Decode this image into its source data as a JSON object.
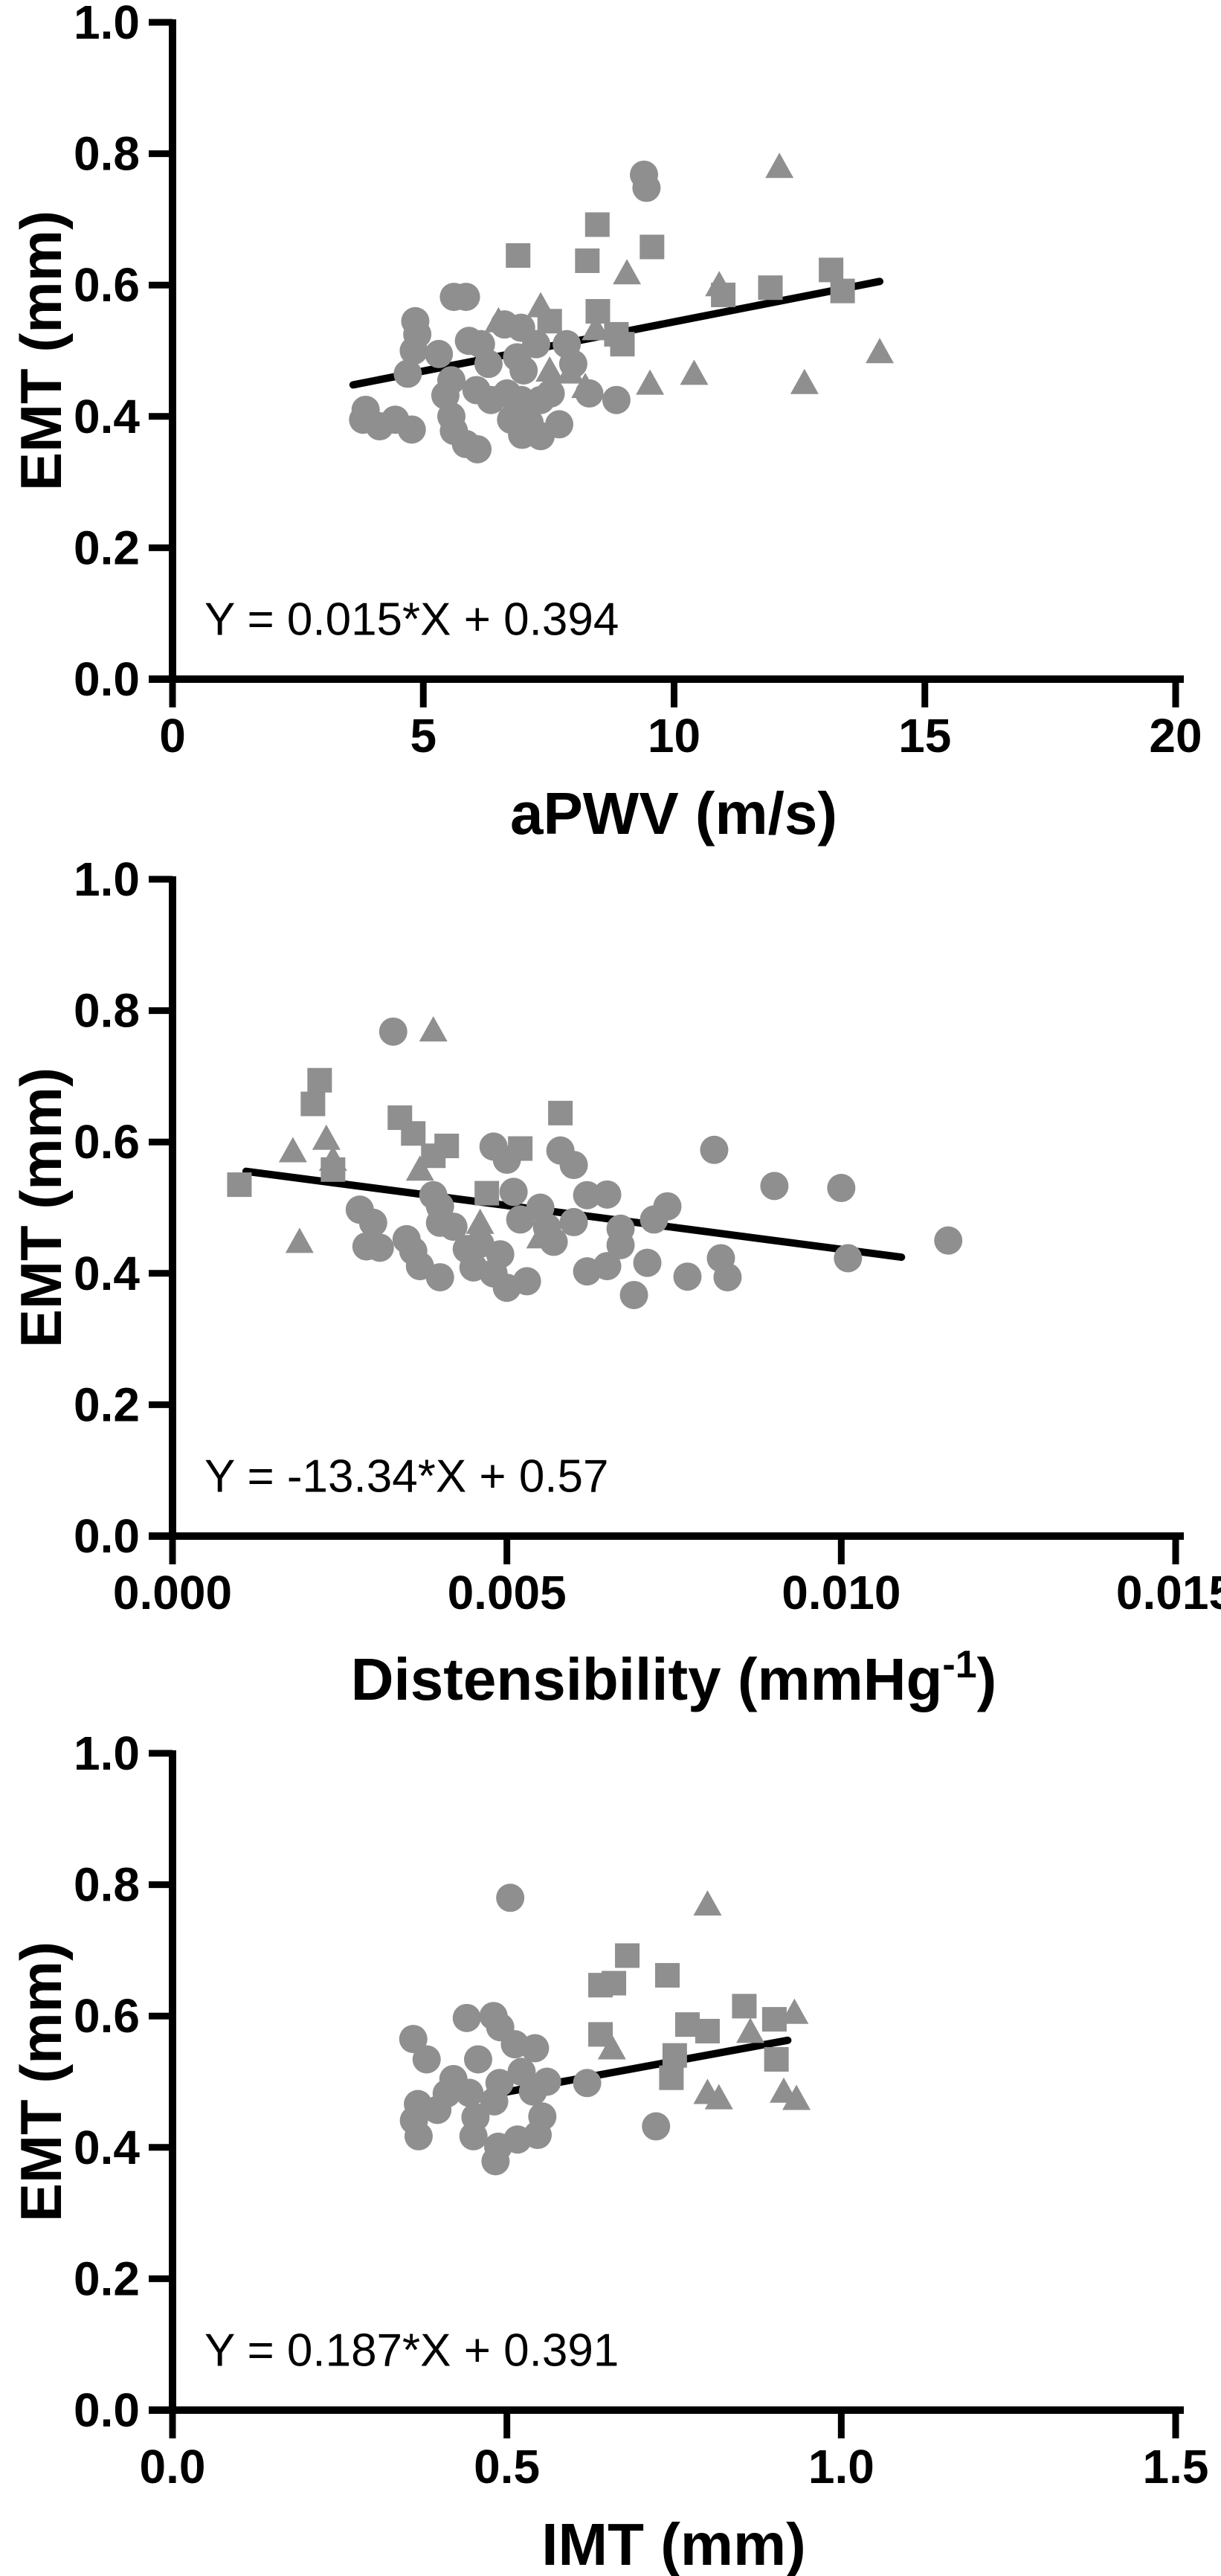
{
  "figure": {
    "background": "#ffffff",
    "marker_color": "#8f8f8f",
    "axis_color": "#000000",
    "regression_color": "#000000",
    "y_axis_label": "EMT (mm)"
  },
  "chart_data": [
    {
      "id": "apwv",
      "type": "scatter",
      "xlabel": "aPWV (m/s)",
      "ylabel": "EMT (mm)",
      "equation": "Y = 0.015*X + 0.394",
      "xlim": [
        0,
        20
      ],
      "ylim": [
        0.0,
        1.0
      ],
      "grid": false,
      "legend": "none",
      "xticks": [
        0,
        5,
        10,
        15,
        20
      ],
      "xtick_labels": [
        "0",
        "5",
        "10",
        "15",
        "20"
      ],
      "yticks": [
        0.0,
        0.2,
        0.4,
        0.6,
        0.8,
        1.0
      ],
      "ytick_labels": [
        "0.0",
        "0.2",
        "0.4",
        "0.6",
        "0.8",
        "1.0"
      ],
      "regression": {
        "slope": 0.015,
        "intercept": 0.394,
        "x_start": 3.6,
        "x_end": 14.1
      },
      "series": [
        {
          "name": "circles",
          "marker": "circle",
          "points": [
            [
              3.85,
              0.41
            ],
            [
              3.8,
              0.395
            ],
            [
              4.13,
              0.385
            ],
            [
              4.44,
              0.395
            ],
            [
              4.77,
              0.38
            ],
            [
              4.69,
              0.465
            ],
            [
              4.81,
              0.5
            ],
            [
              4.84,
              0.545
            ],
            [
              4.88,
              0.525
            ],
            [
              5.31,
              0.495
            ],
            [
              5.61,
              0.582
            ],
            [
              5.85,
              0.582
            ],
            [
              5.56,
              0.455
            ],
            [
              5.44,
              0.432
            ],
            [
              6.06,
              0.44
            ],
            [
              5.91,
              0.515
            ],
            [
              6.15,
              0.51
            ],
            [
              6.3,
              0.48
            ],
            [
              6.62,
              0.54
            ],
            [
              6.95,
              0.535
            ],
            [
              6.87,
              0.49
            ],
            [
              7.0,
              0.47
            ],
            [
              6.35,
              0.425
            ],
            [
              6.67,
              0.435
            ],
            [
              6.95,
              0.425
            ],
            [
              6.75,
              0.395
            ],
            [
              5.56,
              0.4
            ],
            [
              5.61,
              0.378
            ],
            [
              5.85,
              0.358
            ],
            [
              6.08,
              0.35
            ],
            [
              6.87,
              0.41
            ],
            [
              7.12,
              0.39
            ],
            [
              7.34,
              0.425
            ],
            [
              7.54,
              0.435
            ],
            [
              6.97,
              0.372
            ],
            [
              7.34,
              0.37
            ],
            [
              7.71,
              0.388
            ],
            [
              7.86,
              0.51
            ],
            [
              7.99,
              0.48
            ],
            [
              8.31,
              0.435
            ],
            [
              7.25,
              0.51
            ],
            [
              9.4,
              0.768
            ],
            [
              9.45,
              0.748
            ],
            [
              8.85,
              0.425
            ]
          ]
        },
        {
          "name": "squares",
          "marker": "square",
          "points": [
            [
              6.89,
              0.645
            ],
            [
              7.52,
              0.545
            ],
            [
              8.27,
              0.637
            ],
            [
              8.47,
              0.692
            ],
            [
              8.48,
              0.56
            ],
            [
              8.85,
              0.525
            ],
            [
              8.97,
              0.51
            ],
            [
              9.56,
              0.658
            ],
            [
              10.98,
              0.585
            ],
            [
              11.92,
              0.596
            ],
            [
              13.13,
              0.623
            ],
            [
              13.36,
              0.591
            ]
          ]
        },
        {
          "name": "triangles",
          "marker": "triangle",
          "points": [
            [
              6.5,
              0.545
            ],
            [
              7.34,
              0.568
            ],
            [
              7.52,
              0.47
            ],
            [
              7.93,
              0.467
            ],
            [
              8.23,
              0.445
            ],
            [
              8.44,
              0.533
            ],
            [
              9.06,
              0.618
            ],
            [
              9.52,
              0.45
            ],
            [
              10.9,
              0.6
            ],
            [
              12.1,
              0.78
            ],
            [
              10.4,
              0.465
            ],
            [
              12.6,
              0.451
            ],
            [
              14.1,
              0.498
            ]
          ]
        }
      ]
    },
    {
      "id": "distensibility",
      "type": "scatter",
      "xlabel": "Distensibility (mmHg-1)",
      "xlabel_parts": [
        {
          "text": "Distensibility (mmHg"
        },
        {
          "text": "-1",
          "sup": true
        },
        {
          "text": ")"
        }
      ],
      "ylabel": "EMT (mm)",
      "equation": "Y = -13.34*X + 0.57",
      "xlim": [
        0.0,
        0.015
      ],
      "ylim": [
        0.0,
        1.0
      ],
      "grid": false,
      "legend": "none",
      "xticks": [
        0.0,
        0.005,
        0.01,
        0.015
      ],
      "xtick_labels": [
        "0.000",
        "0.005",
        "0.010",
        "0.015"
      ],
      "yticks": [
        0.0,
        0.2,
        0.4,
        0.6,
        0.8,
        1.0
      ],
      "ytick_labels": [
        "0.0",
        "0.2",
        "0.4",
        "0.6",
        "0.8",
        "1.0"
      ],
      "regression": {
        "slope": -13.34,
        "intercept": 0.57,
        "x_start": 0.0011,
        "x_end": 0.0109
      },
      "series": [
        {
          "name": "circles",
          "marker": "circle",
          "points": [
            [
              0.0033,
              0.768
            ],
            [
              0.0028,
              0.497
            ],
            [
              0.003,
              0.477
            ],
            [
              0.0029,
              0.441
            ],
            [
              0.0031,
              0.439
            ],
            [
              0.0035,
              0.452
            ],
            [
              0.0036,
              0.434
            ],
            [
              0.0037,
              0.411
            ],
            [
              0.0039,
              0.519
            ],
            [
              0.004,
              0.502
            ],
            [
              0.004,
              0.477
            ],
            [
              0.0042,
              0.471
            ],
            [
              0.004,
              0.394
            ],
            [
              0.0044,
              0.437
            ],
            [
              0.0045,
              0.409
            ],
            [
              0.0046,
              0.445
            ],
            [
              0.0048,
              0.4
            ],
            [
              0.0049,
              0.429
            ],
            [
              0.005,
              0.378
            ],
            [
              0.0051,
              0.524
            ],
            [
              0.0052,
              0.482
            ],
            [
              0.0048,
              0.593
            ],
            [
              0.005,
              0.573
            ],
            [
              0.0053,
              0.388
            ],
            [
              0.0055,
              0.5
            ],
            [
              0.0056,
              0.47
            ],
            [
              0.0057,
              0.448
            ],
            [
              0.0058,
              0.587
            ],
            [
              0.006,
              0.565
            ],
            [
              0.006,
              0.478
            ],
            [
              0.0062,
              0.519
            ],
            [
              0.0065,
              0.52
            ],
            [
              0.0062,
              0.403
            ],
            [
              0.0065,
              0.411
            ],
            [
              0.0067,
              0.443
            ],
            [
              0.0067,
              0.468
            ],
            [
              0.0069,
              0.367
            ],
            [
              0.0071,
              0.416
            ],
            [
              0.0074,
              0.502
            ],
            [
              0.0072,
              0.482
            ],
            [
              0.0077,
              0.395
            ],
            [
              0.0081,
              0.588
            ],
            [
              0.0082,
              0.423
            ],
            [
              0.0083,
              0.394
            ],
            [
              0.009,
              0.533
            ],
            [
              0.01,
              0.53
            ],
            [
              0.0101,
              0.423
            ],
            [
              0.0116,
              0.45
            ]
          ]
        },
        {
          "name": "squares",
          "marker": "square",
          "points": [
            [
              0.001,
              0.535
            ],
            [
              0.0021,
              0.658
            ],
            [
              0.0022,
              0.694
            ],
            [
              0.0024,
              0.558
            ],
            [
              0.0034,
              0.637
            ],
            [
              0.0036,
              0.613
            ],
            [
              0.0039,
              0.579
            ],
            [
              0.0041,
              0.594
            ],
            [
              0.0047,
              0.522
            ],
            [
              0.0052,
              0.59
            ],
            [
              0.0058,
              0.644
            ]
          ]
        },
        {
          "name": "triangles",
          "marker": "triangle",
          "points": [
            [
              0.0018,
              0.586
            ],
            [
              0.0023,
              0.605
            ],
            [
              0.0024,
              0.573
            ],
            [
              0.0019,
              0.448
            ],
            [
              0.003,
              0.458
            ],
            [
              0.0037,
              0.558
            ],
            [
              0.0039,
              0.77
            ],
            [
              0.0046,
              0.477
            ],
            [
              0.0055,
              0.455
            ]
          ]
        }
      ]
    },
    {
      "id": "imt",
      "type": "scatter",
      "xlabel": "IMT (mm)",
      "ylabel": "EMT (mm)",
      "equation": "Y = 0.187*X + 0.391",
      "xlim": [
        0.0,
        1.5
      ],
      "ylim": [
        0.0,
        1.0
      ],
      "grid": false,
      "legend": "none",
      "xticks": [
        0.0,
        0.5,
        1.0,
        1.5
      ],
      "xtick_labels": [
        "0.0",
        "0.5",
        "1.0",
        "1.5"
      ],
      "yticks": [
        0.0,
        0.2,
        0.4,
        0.6,
        0.8,
        1.0
      ],
      "ytick_labels": [
        "0.0",
        "0.2",
        "0.4",
        "0.6",
        "0.8",
        "1.0"
      ],
      "regression": {
        "slope": 0.187,
        "intercept": 0.391,
        "x_start": 0.5,
        "x_end": 0.92
      },
      "series": [
        {
          "name": "circles",
          "marker": "circle",
          "points": [
            [
              0.505,
              0.78
            ],
            [
              0.36,
              0.565
            ],
            [
              0.38,
              0.534
            ],
            [
              0.44,
              0.597
            ],
            [
              0.48,
              0.6
            ],
            [
              0.49,
              0.583
            ],
            [
              0.457,
              0.534
            ],
            [
              0.42,
              0.504
            ],
            [
              0.367,
              0.466
            ],
            [
              0.361,
              0.441
            ],
            [
              0.368,
              0.417
            ],
            [
              0.396,
              0.457
            ],
            [
              0.41,
              0.482
            ],
            [
              0.444,
              0.483
            ],
            [
              0.453,
              0.446
            ],
            [
              0.45,
              0.417
            ],
            [
              0.481,
              0.47
            ],
            [
              0.489,
              0.498
            ],
            [
              0.512,
              0.557
            ],
            [
              0.542,
              0.551
            ],
            [
              0.522,
              0.515
            ],
            [
              0.539,
              0.485
            ],
            [
              0.553,
              0.447
            ],
            [
              0.546,
              0.419
            ],
            [
              0.516,
              0.412
            ],
            [
              0.487,
              0.401
            ],
            [
              0.483,
              0.379
            ],
            [
              0.56,
              0.5
            ],
            [
              0.62,
              0.498
            ],
            [
              0.723,
              0.432
            ]
          ]
        },
        {
          "name": "squares",
          "marker": "square",
          "points": [
            [
              0.64,
              0.647
            ],
            [
              0.66,
              0.65
            ],
            [
              0.68,
              0.692
            ],
            [
              0.64,
              0.572
            ],
            [
              0.74,
              0.662
            ],
            [
              0.77,
              0.587
            ],
            [
              0.8,
              0.577
            ],
            [
              0.855,
              0.615
            ],
            [
              0.9,
              0.595
            ],
            [
              0.903,
              0.534
            ],
            [
              0.751,
              0.54
            ],
            [
              0.746,
              0.506
            ]
          ]
        },
        {
          "name": "triangles",
          "marker": "triangle",
          "points": [
            [
              0.8,
              0.77
            ],
            [
              0.657,
              0.551
            ],
            [
              0.864,
              0.576
            ],
            [
              0.93,
              0.605
            ],
            [
              0.8,
              0.483
            ],
            [
              0.817,
              0.475
            ],
            [
              0.914,
              0.485
            ],
            [
              0.933,
              0.474
            ]
          ]
        }
      ]
    }
  ]
}
